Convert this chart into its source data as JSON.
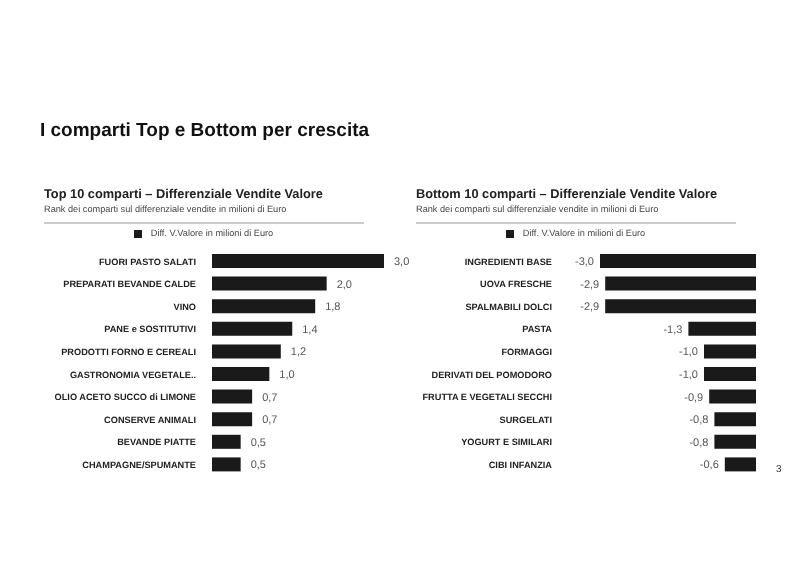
{
  "chart_data": [
    {
      "type": "bar",
      "orientation": "horizontal",
      "title": "Top 10 comparti – Differenziale Vendite Valore",
      "subtitle": "Rank dei comparti sul differenziale vendite in milioni di Euro",
      "annotations": [
        "I comparti Top e Bottom per crescita"
      ],
      "legend": "top",
      "categories": [
        "FUORI PASTO SALATI",
        "PREPARATI BEVANDE CALDE",
        "VINO",
        "PANE e SOSTITUTIVI",
        "PRODOTTI FORNO E CEREALI",
        "GASTRONOMIA VEGETALE..",
        "OLIO ACETO SUCCO di LIMONE",
        "CONSERVE ANIMALI",
        "BEVANDE PIATTE",
        "CHAMPAGNE/SPUMANTE"
      ],
      "series": [
        {
          "name": "Diff. V.Valore in milioni di Euro",
          "color": "#1a1a1a",
          "values": [
            3.0,
            2.0,
            1.8,
            1.4,
            1.2,
            1.0,
            0.7,
            0.7,
            0.5,
            0.5
          ],
          "value_labels": [
            "3,0",
            "2,0",
            "1,8",
            "1,4",
            "1,2",
            "1,0",
            "0,7",
            "0,7",
            "0,5",
            "0,5"
          ]
        }
      ]
    },
    {
      "type": "bar",
      "orientation": "horizontal",
      "title": "Bottom 10 comparti – Differenziale Vendite Valore",
      "subtitle": "Rank dei comparti sul differenziale vendite in milioni di Euro",
      "annotations": [
        "3"
      ],
      "legend": "top",
      "categories": [
        "INGREDIENTI BASE",
        "UOVA FRESCHE",
        "SPALMABILI DOLCI",
        "PASTA",
        "FORMAGGI",
        "DERIVATI DEL POMODORO",
        "FRUTTA E VEGETALI SECCHI",
        "SURGELATI",
        "YOGURT E SIMILARI",
        "CIBI INFANZIA"
      ],
      "series": [
        {
          "name": "Diff. V.Valore in milioni di Euro",
          "color": "#1a1a1a",
          "values": [
            -3.0,
            -2.9,
            -2.9,
            -1.3,
            -1.0,
            -1.0,
            -0.9,
            -0.8,
            -0.8,
            -0.6
          ],
          "value_labels": [
            "-3,0",
            "-2,9",
            "-2,9",
            "-1,3",
            "-1,0",
            "-1,0",
            "-0,9",
            "-0,8",
            "-0,8",
            "-0,6"
          ]
        }
      ]
    }
  ]
}
